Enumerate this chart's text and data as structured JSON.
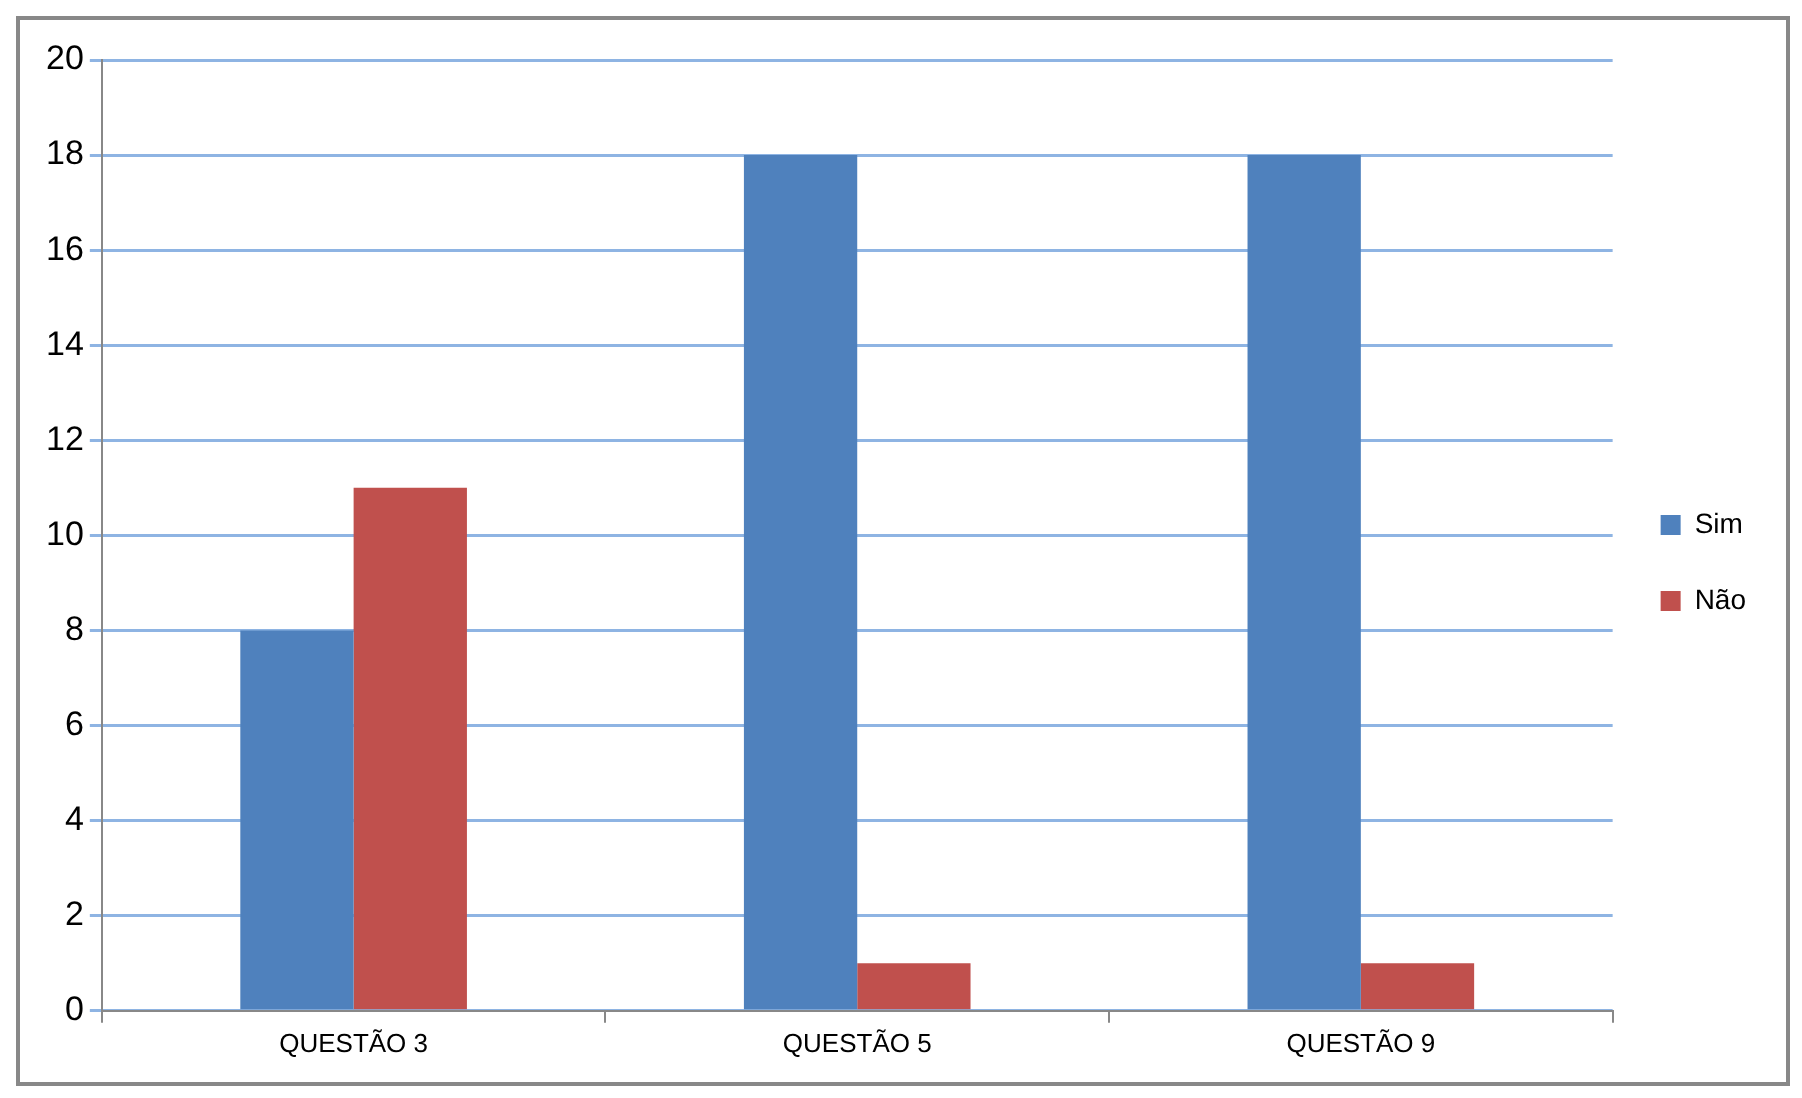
{
  "chart_data": {
    "type": "bar",
    "categories": [
      "QUESTÃO 3",
      "QUESTÃO 5",
      "QUESTÃO 9"
    ],
    "series": [
      {
        "name": "Sim",
        "color": "#4f81bd",
        "values": [
          8,
          18,
          18
        ]
      },
      {
        "name": "Não",
        "color": "#c0504d",
        "values": [
          11,
          1,
          1
        ]
      }
    ],
    "ylim": [
      0,
      20
    ],
    "yticks": [
      0,
      2,
      4,
      6,
      8,
      10,
      12,
      14,
      16,
      18,
      20
    ],
    "grid": "y",
    "legend": "right"
  }
}
